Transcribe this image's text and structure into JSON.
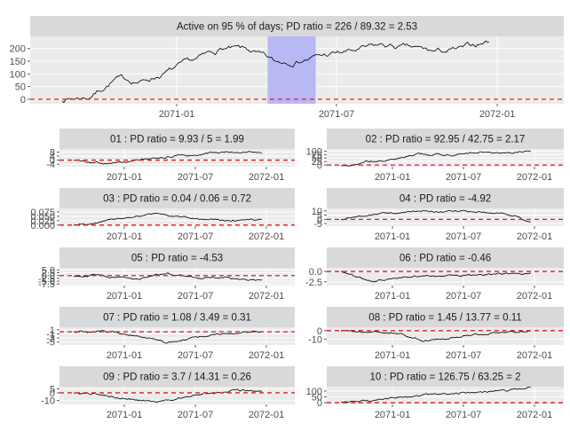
{
  "x_ticks": [
    "2071-01",
    "2071-07",
    "2072-01"
  ],
  "main": {
    "title": "Active on 95 % of days; PD ratio =  226 / 89.32 = 2.53",
    "y_ticks": [
      "0",
      "50",
      "100",
      "150",
      "200"
    ],
    "ylim": [
      -18,
      248
    ],
    "highlight": {
      "start": 0.445,
      "end": 0.535
    }
  },
  "panels": [
    {
      "title": "01 : PD ratio =  9.93 / 5 = 1.99",
      "y_ticks": [
        "-4",
        "0",
        "4",
        "8"
      ],
      "ylim": [
        -6.5,
        11
      ]
    },
    {
      "title": "02 : PD ratio =  92.95 / 42.75 = 2.17",
      "y_ticks": [
        "0",
        "25",
        "50",
        "75",
        "100"
      ],
      "ylim": [
        -12,
        115
      ]
    },
    {
      "title": "03 : PD ratio =  0.04 / 0.06 = 0.72",
      "y_ticks": [
        "0.000",
        "0.025",
        "0.050",
        "0.075"
      ],
      "ylim": [
        -0.006,
        0.095
      ]
    },
    {
      "title": "04 : PD ratio =  -4.92",
      "y_ticks": [
        "-5",
        "0",
        "5",
        "10"
      ],
      "ylim": [
        -8,
        13
      ]
    },
    {
      "title": "05 : PD ratio =  -4.53",
      "y_ticks": [
        "-7.5",
        "-5.0",
        "-2.5",
        "0.0",
        "2.5",
        "5.0"
      ],
      "ylim": [
        -9,
        7
      ]
    },
    {
      "title": "06 : PD ratio =  -0.46",
      "y_ticks": [
        "-2.5",
        "0.0"
      ],
      "ylim": [
        -3.4,
        0.9
      ]
    },
    {
      "title": "07 : PD ratio =  1.08 / 3.49 = 0.31",
      "y_ticks": [
        "-5",
        "-3",
        "-1",
        "1"
      ],
      "ylim": [
        -6.4,
        2.2
      ]
    },
    {
      "title": "08 : PD ratio =  1.45 / 13.77 = 0.11",
      "y_ticks": [
        "-10",
        "0"
      ],
      "ylim": [
        -17,
        4
      ]
    },
    {
      "title": "09 : PD ratio =  3.7 / 14.31 = 0.26",
      "y_ticks": [
        "-10",
        "0",
        "5"
      ],
      "ylim": [
        -15,
        8
      ]
    },
    {
      "title": "10 : PD ratio =  126.75 / 63.25 = 2",
      "y_ticks": [
        "0",
        "50",
        "100"
      ],
      "ylim": [
        -15,
        138
      ]
    }
  ],
  "chart_data": {
    "type": "line",
    "x_ticks": [
      "2071-01",
      "2071-07",
      "2072-01"
    ],
    "reference_line": {
      "y": 0,
      "style": "dashed",
      "color": "#e41a1c"
    },
    "main": {
      "title": "Active on 95 % of days; PD ratio =  226 / 89.32 = 2.53",
      "ylim": [
        -18,
        248
      ],
      "y_ticks": [
        0,
        50,
        100,
        150,
        200
      ],
      "shaded_region_color": "#b8b8f5",
      "x": [
        "2070-10",
        "2070-11",
        "2070-12",
        "2071-01",
        "2071-02",
        "2071-03",
        "2071-04",
        "2071-05",
        "2071-06",
        "2071-07",
        "2071-08",
        "2071-09",
        "2071-10",
        "2071-11",
        "2071-12",
        "2072-01",
        "2072-02"
      ],
      "values": [
        0,
        10,
        80,
        70,
        110,
        150,
        200,
        190,
        140,
        160,
        175,
        190,
        210,
        200,
        185,
        195,
        230
      ]
    },
    "panels": [
      {
        "id": "01",
        "ylim": [
          -6.5,
          11
        ],
        "values": [
          0,
          -1,
          -2,
          -3,
          -2,
          -1,
          1,
          2,
          3,
          4,
          5,
          6,
          7,
          8,
          8,
          8,
          8
        ]
      },
      {
        "id": "02",
        "ylim": [
          -12,
          115
        ],
        "values": [
          0,
          5,
          20,
          30,
          45,
          55,
          70,
          80,
          75,
          70,
          80,
          85,
          90,
          80,
          85,
          90,
          92
        ]
      },
      {
        "id": "03",
        "ylim": [
          -0.006,
          0.095
        ],
        "values": [
          0,
          0.005,
          0.015,
          0.03,
          0.04,
          0.05,
          0.06,
          0.065,
          0.05,
          0.045,
          0.04,
          0.035,
          0.03,
          0.025,
          0.03,
          0.035,
          0.032
        ]
      },
      {
        "id": "04",
        "ylim": [
          -8,
          13
        ],
        "values": [
          0,
          2,
          4,
          6,
          7,
          8,
          9,
          10,
          9,
          9,
          10,
          9,
          8,
          7,
          6,
          2,
          -4
        ]
      },
      {
        "id": "05",
        "ylim": [
          -9,
          7
        ],
        "values": [
          0,
          -0.5,
          0.5,
          -1,
          -2,
          -4,
          -2,
          1,
          2,
          0,
          -1,
          -2,
          -1,
          -2,
          -3,
          -4,
          -5
        ]
      },
      {
        "id": "06",
        "ylim": [
          -3.4,
          0.9
        ],
        "values": [
          0,
          -1,
          -2,
          -2.5,
          -1.8,
          -1.5,
          -1.2,
          -0.8,
          -1,
          -0.9,
          -1.1,
          -0.8,
          -0.5,
          -0.7,
          -0.4,
          -0.5,
          -0.4
        ]
      },
      {
        "id": "07",
        "ylim": [
          -6.4,
          2.2
        ],
        "values": [
          0,
          -0.5,
          0,
          -0.5,
          -1,
          -1.5,
          -3,
          -4,
          -5,
          -4,
          -3,
          -2,
          -1.5,
          -1,
          -0.5,
          0,
          0.5
        ]
      },
      {
        "id": "08",
        "ylim": [
          -17,
          4
        ],
        "values": [
          0,
          0,
          -1,
          -2,
          -3,
          -4,
          -8,
          -12,
          -10,
          -9,
          -7,
          -5,
          -4,
          -3,
          -2,
          -1,
          0
        ]
      },
      {
        "id": "09",
        "ylim": [
          -15,
          8
        ],
        "values": [
          0,
          -1,
          -2,
          -4,
          -6,
          -8,
          -10,
          -12,
          -10,
          -8,
          -5,
          -2,
          0,
          2,
          3,
          2,
          3
        ]
      },
      {
        "id": "10",
        "ylim": [
          -15,
          138
        ],
        "values": [
          0,
          5,
          15,
          25,
          35,
          45,
          55,
          65,
          75,
          80,
          85,
          90,
          95,
          100,
          105,
          115,
          125
        ]
      }
    ]
  }
}
